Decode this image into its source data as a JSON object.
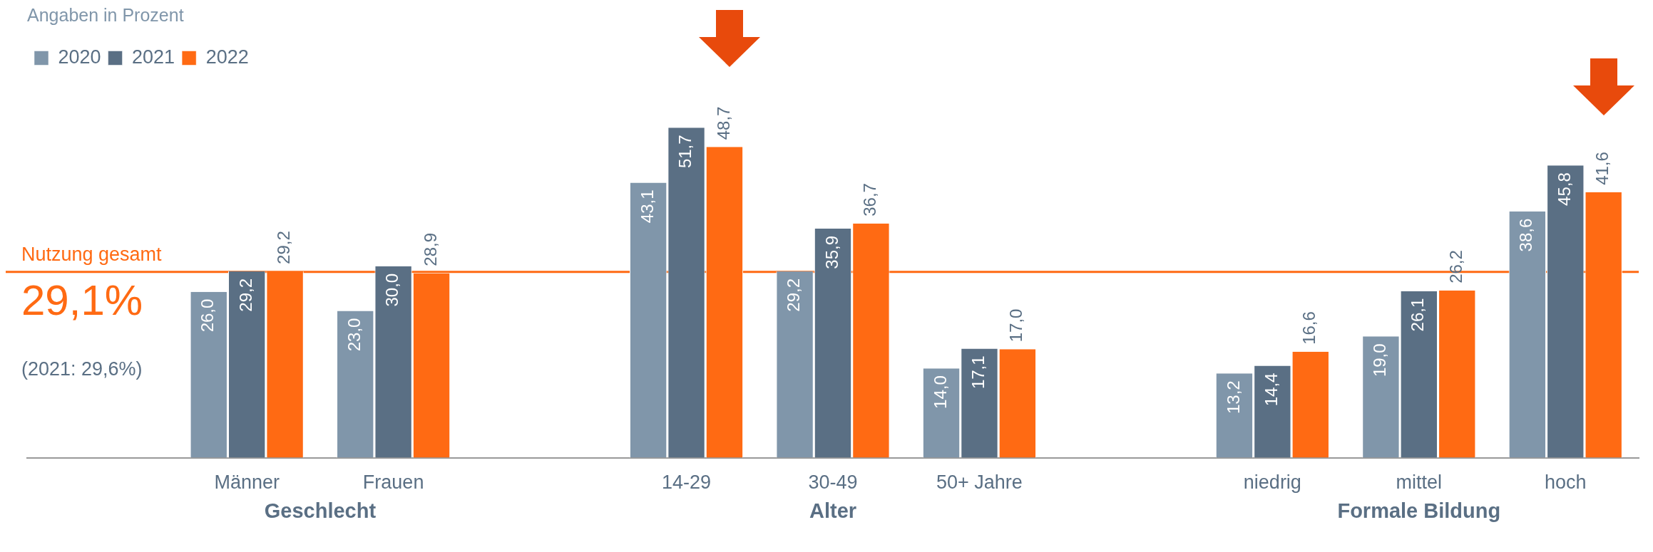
{
  "chart_data": {
    "type": "bar",
    "subtitle": "Angaben in Prozent",
    "categories": [
      null,
      "Männer",
      "Frauen",
      null,
      "14-29",
      "30-49",
      "50+ Jahre",
      null,
      "niedrig",
      "mittel",
      "hoch"
    ],
    "series": [
      {
        "name": "2020",
        "color": "#8096aa",
        "values": [
          null,
          26.0,
          23.0,
          null,
          43.1,
          29.2,
          14.0,
          null,
          13.2,
          19.0,
          38.6
        ],
        "value_labels": [
          null,
          "26,0",
          "23,0",
          null,
          "43,1",
          "29,2",
          "14,0",
          null,
          "13,2",
          "19,0",
          "38,6"
        ]
      },
      {
        "name": "2021",
        "color": "#5a6f84",
        "values": [
          null,
          29.2,
          30.0,
          null,
          51.7,
          35.9,
          17.1,
          null,
          14.4,
          26.1,
          45.8
        ],
        "value_labels": [
          null,
          "29,2",
          "30,0",
          null,
          "51,7",
          "35,9",
          "17,1",
          null,
          "14,4",
          "26,1",
          "45,8"
        ]
      },
      {
        "name": "2022",
        "color": "#ff6a13",
        "values": [
          null,
          29.2,
          28.9,
          null,
          48.7,
          36.7,
          17.0,
          null,
          16.6,
          26.2,
          41.6
        ],
        "value_labels": [
          null,
          "29,2",
          "28,9",
          null,
          "48,7",
          "36,7",
          "17,0",
          null,
          "16,6",
          "26,2",
          "41,6"
        ]
      }
    ],
    "ref_lines": [
      {
        "axis": "y",
        "value": 29.1,
        "label": "Nutzung gesamt",
        "color": "#ff6a13"
      }
    ],
    "annotations": [
      "Geschlecht",
      "Alter",
      "Formale Bildung",
      "29,1%",
      "(2021: 29,6%)"
    ],
    "legend": "top left"
  }
}
